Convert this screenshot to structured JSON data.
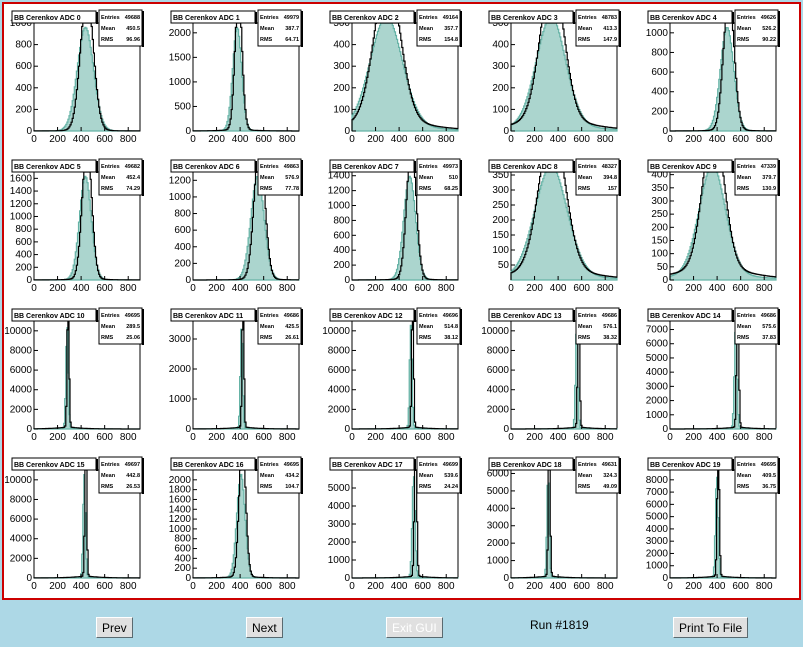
{
  "colors": {
    "frame": "#cc0000",
    "background": "#add8e6",
    "fill": "#66b3a6",
    "exit": "#ff0000"
  },
  "buttons": {
    "prev": "Prev",
    "next": "Next",
    "exit": "Exit GUI",
    "print": "Print To File"
  },
  "run_label": "Run #1819",
  "chart_data": [
    {
      "type": "histogram",
      "title": "BB Cerenkov ADC 0",
      "stats": {
        "entries": "49688",
        "mean": "450.5",
        "rms": "96.96"
      },
      "ylim": [
        0,
        1000
      ],
      "yticks": [
        0,
        200,
        400,
        600,
        800,
        1000
      ],
      "xlim": [
        0,
        900
      ],
      "xticks": [
        0,
        200,
        400,
        600,
        800
      ],
      "peak": 450,
      "width": 55
    },
    {
      "type": "histogram",
      "title": "BB Cerenkov ADC 1",
      "stats": {
        "entries": "49979",
        "mean": "387.7",
        "rms": "64.71"
      },
      "ylim": [
        0,
        2200
      ],
      "yticks": [
        0,
        500,
        1000,
        1500,
        2000
      ],
      "xlim": [
        0,
        900
      ],
      "xticks": [
        0,
        200,
        400,
        600,
        800
      ],
      "peak": 387,
      "width": 30
    },
    {
      "type": "histogram",
      "title": "BB Cerenkov ADC 2",
      "stats": {
        "entries": "49164",
        "mean": "357.7",
        "rms": "154.8"
      },
      "ylim": [
        0,
        500
      ],
      "yticks": [
        0,
        100,
        200,
        300,
        400,
        500
      ],
      "xlim": [
        0,
        900
      ],
      "xticks": [
        0,
        200,
        400,
        600,
        800
      ],
      "peak": 300,
      "width": 110
    },
    {
      "type": "histogram",
      "title": "BB Cerenkov ADC 3",
      "stats": {
        "entries": "48783",
        "mean": "413.3",
        "rms": "147.9"
      },
      "ylim": [
        0,
        500
      ],
      "yticks": [
        0,
        100,
        200,
        300,
        400,
        500
      ],
      "xlim": [
        0,
        900
      ],
      "xticks": [
        0,
        200,
        400,
        600,
        800
      ],
      "peak": 350,
      "width": 100
    },
    {
      "type": "histogram",
      "title": "BB Cerenkov ADC 4",
      "stats": {
        "entries": "49626",
        "mean": "526.2",
        "rms": "90.22"
      },
      "ylim": [
        0,
        1100
      ],
      "yticks": [
        0,
        200,
        400,
        600,
        800,
        1000
      ],
      "xlim": [
        0,
        900
      ],
      "xticks": [
        0,
        200,
        400,
        600,
        800
      ],
      "peak": 500,
      "width": 45
    },
    {
      "type": "histogram",
      "title": "BB Cerenkov ADC 5",
      "stats": {
        "entries": "49682",
        "mean": "452.4",
        "rms": "74.29"
      },
      "ylim": [
        0,
        1700
      ],
      "yticks": [
        0,
        200,
        400,
        600,
        800,
        1000,
        1200,
        1400,
        1600
      ],
      "xlim": [
        0,
        900
      ],
      "xticks": [
        0,
        200,
        400,
        600,
        800
      ],
      "peak": 450,
      "width": 40
    },
    {
      "type": "histogram",
      "title": "BB Cerenkov ADC 6",
      "stats": {
        "entries": "49863",
        "mean": "576.9",
        "rms": "77.78"
      },
      "ylim": [
        0,
        1300
      ],
      "yticks": [
        0,
        200,
        400,
        600,
        800,
        1000,
        1200
      ],
      "xlim": [
        0,
        900
      ],
      "xticks": [
        0,
        200,
        400,
        600,
        800
      ],
      "peak": 565,
      "width": 45
    },
    {
      "type": "histogram",
      "title": "BB Cerenkov ADC 7",
      "stats": {
        "entries": "49973",
        "mean": "510",
        "rms": "68.25"
      },
      "ylim": [
        0,
        1450
      ],
      "yticks": [
        0,
        200,
        400,
        600,
        800,
        1000,
        1200,
        1400
      ],
      "xlim": [
        0,
        900
      ],
      "xticks": [
        0,
        200,
        400,
        600,
        800
      ],
      "peak": 505,
      "width": 40
    },
    {
      "type": "histogram",
      "title": "BB Cerenkov ADC 8",
      "stats": {
        "entries": "48327",
        "mean": "394.8",
        "rms": "157"
      },
      "ylim": [
        0,
        360
      ],
      "yticks": [
        50,
        100,
        150,
        200,
        250,
        300,
        350
      ],
      "xlim": [
        0,
        900
      ],
      "xticks": [
        0,
        200,
        400,
        600,
        800
      ],
      "peak": 350,
      "width": 110
    },
    {
      "type": "histogram",
      "title": "BB Cerenkov ADC 9",
      "stats": {
        "entries": "47339",
        "mean": "379.7",
        "rms": "130.9"
      },
      "ylim": [
        0,
        410
      ],
      "yticks": [
        0,
        50,
        100,
        150,
        200,
        250,
        300,
        350,
        400
      ],
      "xlim": [
        0,
        900
      ],
      "xticks": [
        0,
        200,
        400,
        600,
        800
      ],
      "peak": 370,
      "width": 90
    },
    {
      "type": "histogram",
      "title": "BB Cerenkov ADC 10",
      "stats": {
        "entries": "49695",
        "mean": "289.5",
        "rms": "25.06"
      },
      "ylim": [
        0,
        11000
      ],
      "yticks": [
        0,
        2000,
        4000,
        6000,
        8000,
        10000
      ],
      "xlim": [
        0,
        900
      ],
      "xticks": [
        0,
        200,
        400,
        600,
        800
      ],
      "peak": 290,
      "width": 8
    },
    {
      "type": "histogram",
      "title": "BB Cerenkov ADC 11",
      "stats": {
        "entries": "49686",
        "mean": "425.5",
        "rms": "26.61"
      },
      "ylim": [
        0,
        3600
      ],
      "yticks": [
        0,
        1000,
        2000,
        3000
      ],
      "xlim": [
        0,
        900
      ],
      "xticks": [
        0,
        200,
        400,
        600,
        800
      ],
      "peak": 425,
      "width": 8
    },
    {
      "type": "histogram",
      "title": "BB Cerenkov ADC 12",
      "stats": {
        "entries": "49696",
        "mean": "514.8",
        "rms": "38.12"
      },
      "ylim": [
        0,
        11000
      ],
      "yticks": [
        0,
        2000,
        4000,
        6000,
        8000,
        10000
      ],
      "xlim": [
        0,
        900
      ],
      "xticks": [
        0,
        200,
        400,
        600,
        800
      ],
      "peak": 515,
      "width": 8
    },
    {
      "type": "histogram",
      "title": "BB Cerenkov ADC 13",
      "stats": {
        "entries": "49686",
        "mean": "576.1",
        "rms": "38.32"
      },
      "ylim": [
        0,
        11000
      ],
      "yticks": [
        0,
        2000,
        4000,
        6000,
        8000,
        10000
      ],
      "xlim": [
        0,
        900
      ],
      "xticks": [
        0,
        200,
        400,
        600,
        800
      ],
      "peak": 575,
      "width": 8
    },
    {
      "type": "histogram",
      "title": "BB Cerenkov ADC 14",
      "stats": {
        "entries": "49686",
        "mean": "575.6",
        "rms": "37.83"
      },
      "ylim": [
        0,
        7600
      ],
      "yticks": [
        0,
        1000,
        2000,
        3000,
        4000,
        5000,
        6000,
        7000
      ],
      "xlim": [
        0,
        900
      ],
      "xticks": [
        0,
        200,
        400,
        600,
        800
      ],
      "peak": 575,
      "width": 9
    },
    {
      "type": "histogram",
      "title": "BB Cerenkov ADC 15",
      "stats": {
        "entries": "49697",
        "mean": "442.8",
        "rms": "26.53"
      },
      "ylim": [
        0,
        11000
      ],
      "yticks": [
        0,
        2000,
        4000,
        6000,
        8000,
        10000
      ],
      "xlim": [
        0,
        900
      ],
      "xticks": [
        0,
        200,
        400,
        600,
        800
      ],
      "peak": 440,
      "width": 8
    },
    {
      "type": "histogram",
      "title": "BB Cerenkov ADC 16",
      "stats": {
        "entries": "49695",
        "mean": "434.2",
        "rms": "104.7"
      },
      "ylim": [
        0,
        2200
      ],
      "yticks": [
        0,
        200,
        400,
        600,
        800,
        1000,
        1200,
        1400,
        1600,
        1800,
        2000
      ],
      "xlim": [
        0,
        900
      ],
      "xticks": [
        0,
        200,
        400,
        600,
        800
      ],
      "peak": 420,
      "width": 28
    },
    {
      "type": "histogram",
      "title": "BB Cerenkov ADC 17",
      "stats": {
        "entries": "49699",
        "mean": "539.6",
        "rms": "24.24"
      },
      "ylim": [
        0,
        6000
      ],
      "yticks": [
        0,
        1000,
        2000,
        3000,
        4000,
        5000
      ],
      "xlim": [
        0,
        900
      ],
      "xticks": [
        0,
        200,
        400,
        600,
        800
      ],
      "peak": 540,
      "width": 10
    },
    {
      "type": "histogram",
      "title": "BB Cerenkov ADC 18",
      "stats": {
        "entries": "49631",
        "mean": "324.3",
        "rms": "49.09"
      },
      "ylim": [
        0,
        6200
      ],
      "yticks": [
        0,
        1000,
        2000,
        3000,
        4000,
        5000,
        6000
      ],
      "xlim": [
        0,
        900
      ],
      "xticks": [
        0,
        200,
        400,
        600,
        800
      ],
      "peak": 325,
      "width": 8
    },
    {
      "type": "histogram",
      "title": "BB Cerenkov ADC 19",
      "stats": {
        "entries": "49695",
        "mean": "409.5",
        "rms": "36.75"
      },
      "ylim": [
        0,
        8800
      ],
      "yticks": [
        0,
        1000,
        2000,
        3000,
        4000,
        5000,
        6000,
        7000,
        8000
      ],
      "xlim": [
        0,
        900
      ],
      "xticks": [
        0,
        200,
        400,
        600,
        800
      ],
      "peak": 410,
      "width": 9
    }
  ]
}
